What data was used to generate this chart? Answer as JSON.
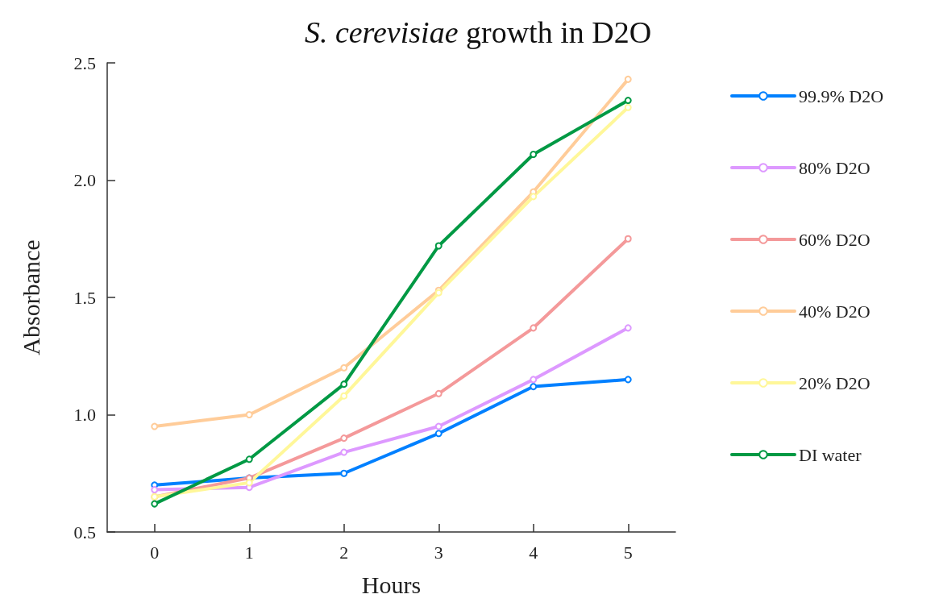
{
  "chart_data": {
    "type": "line",
    "title": "S. cerevisiae growth in D2O",
    "xlabel": "Hours",
    "ylabel": "Absorbance",
    "x": [
      0,
      1,
      2,
      3,
      4,
      5
    ],
    "series": [
      {
        "name": "99.9% D2O",
        "color": "#0080ff",
        "values": [
          0.7,
          0.73,
          0.75,
          0.92,
          1.12,
          1.15
        ]
      },
      {
        "name": "80% D2O",
        "color": "#dd99ff",
        "values": [
          0.68,
          0.69,
          0.84,
          0.95,
          1.15,
          1.37
        ]
      },
      {
        "name": "60% D2O",
        "color": "#f4999a",
        "values": [
          0.65,
          0.73,
          0.9,
          1.09,
          1.37,
          1.75
        ]
      },
      {
        "name": "40% D2O",
        "color": "#ffcc99",
        "values": [
          0.95,
          1.0,
          1.2,
          1.53,
          1.95,
          2.43
        ]
      },
      {
        "name": "20% D2O",
        "color": "#fff799",
        "values": [
          0.65,
          0.71,
          1.08,
          1.52,
          1.93,
          2.31
        ]
      },
      {
        "name": "DI water",
        "color": "#009944",
        "values": [
          0.62,
          0.81,
          1.13,
          1.72,
          2.11,
          2.34
        ]
      }
    ],
    "xlim": [
      -0.5,
      5.5
    ],
    "xticks": [
      0,
      1,
      2,
      3,
      4,
      5
    ],
    "ylim": [
      0.5,
      2.5
    ],
    "yticks": [
      {
        "value": 0.5,
        "label": "0.5"
      },
      {
        "value": 1,
        "label": "1.0"
      },
      {
        "value": 1.5,
        "label": "1.5"
      },
      {
        "value": 2,
        "label": "2.0"
      },
      {
        "value": 2.5,
        "label": "2.5"
      }
    ],
    "grid": false,
    "legend": "right",
    "marker": "circle",
    "line_style": "solid"
  }
}
